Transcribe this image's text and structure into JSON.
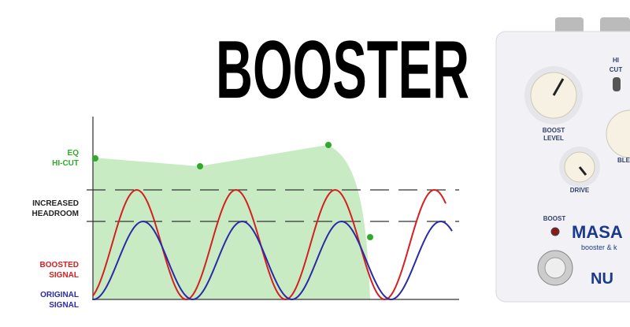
{
  "title": "BOOSTER",
  "diagram": {
    "eq_label": [
      "EQ",
      "HI-CUT"
    ],
    "headroom_label": [
      "INCREASED",
      "HEADROOM"
    ],
    "boosted_label": [
      "BOOSTED",
      "SIGNAL"
    ],
    "original_label": [
      "ORIGINAL",
      "SIGNAL"
    ]
  },
  "pedal": {
    "hi_cut": [
      "HI",
      "CUT"
    ],
    "boost_level": [
      "BOOST",
      "LEVEL"
    ],
    "blend": "BLE",
    "drive": "DRIVE",
    "boost": "BOOST",
    "brand": "MASA",
    "subtitle": "booster & k",
    "maker": "NU"
  }
}
